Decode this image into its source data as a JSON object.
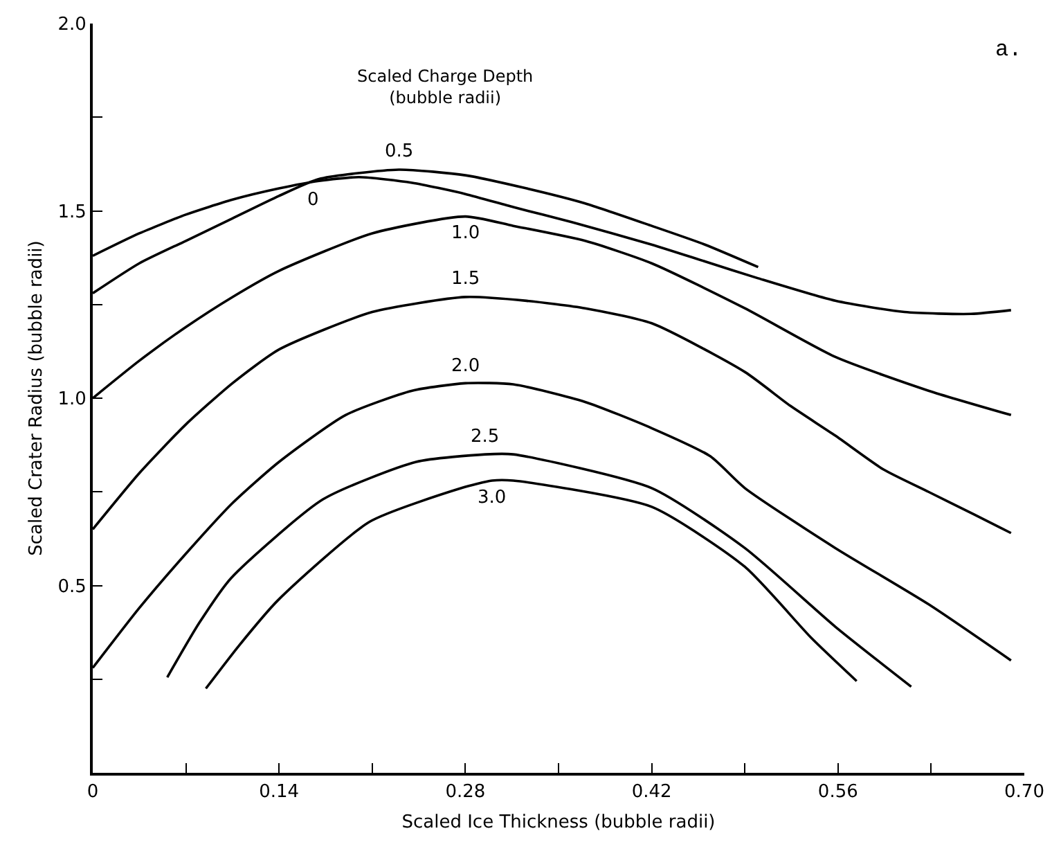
{
  "chart_data": {
    "type": "line",
    "xlabel": "Scaled Ice Thickness (bubble radii)",
    "ylabel": "Scaled Crater Radius (bubble radii)",
    "legend_title": "Scaled Charge Depth\n(bubble radii)",
    "annotations": [
      "a."
    ],
    "xlim": [
      0,
      0.7
    ],
    "ylim": [
      0,
      2.0
    ],
    "xticks": [
      0,
      {
        "value": 0.07,
        "label": null
      },
      0.14,
      {
        "value": 0.21,
        "label": null
      },
      0.28,
      {
        "value": 0.35,
        "label": null
      },
      0.42,
      {
        "value": 0.49,
        "label": null
      },
      0.56,
      {
        "value": 0.63,
        "label": null
      },
      {
        "value": 0.7,
        "label": "0.70"
      }
    ],
    "yticks": [
      {
        "value": 0.25,
        "label": null
      },
      0.5,
      {
        "value": 0.75,
        "label": null
      },
      {
        "value": 1,
        "label": "1.0"
      },
      {
        "value": 1.25,
        "label": null
      },
      1.5,
      {
        "value": 1.75,
        "label": null
      },
      {
        "value": 2,
        "label": "2.0"
      }
    ],
    "grid": false,
    "legend": false,
    "marker": "none",
    "line_style": "solid",
    "series": [
      {
        "name": "0",
        "color": "#000000",
        "x": [
          0,
          0.035,
          0.07,
          0.105,
          0.14,
          0.17,
          0.2,
          0.24,
          0.28,
          0.316,
          0.36,
          0.42,
          0.46,
          0.5,
          0.558,
          0.61,
          0.66,
          0.69
        ],
        "values": [
          1.38,
          1.44,
          1.49,
          1.53,
          1.56,
          1.58,
          1.59,
          1.575,
          1.545,
          1.51,
          1.47,
          1.41,
          1.365,
          1.32,
          1.26,
          1.23,
          1.225,
          1.235
        ]
      },
      {
        "name": "0.5",
        "color": "#000000",
        "x": [
          0,
          0.035,
          0.07,
          0.105,
          0.14,
          0.17,
          0.23,
          0.28,
          0.326,
          0.37,
          0.42,
          0.46,
          0.5
        ],
        "values": [
          1.28,
          1.36,
          1.42,
          1.48,
          1.54,
          1.585,
          1.61,
          1.595,
          1.56,
          1.52,
          1.46,
          1.41,
          1.35
        ]
      },
      {
        "name": "1.0",
        "color": "#000000",
        "x": [
          0,
          0.035,
          0.07,
          0.105,
          0.14,
          0.21,
          0.28,
          0.316,
          0.37,
          0.42,
          0.49,
          0.558,
          0.628,
          0.69
        ],
        "values": [
          1.0,
          1.1,
          1.19,
          1.27,
          1.34,
          1.44,
          1.485,
          1.46,
          1.42,
          1.36,
          1.24,
          1.11,
          1.02,
          0.955
        ]
      },
      {
        "name": "1.5",
        "color": "#000000",
        "x": [
          0,
          0.035,
          0.07,
          0.105,
          0.14,
          0.21,
          0.28,
          0.326,
          0.37,
          0.42,
          0.49,
          0.524,
          0.558,
          0.594,
          0.628,
          0.662,
          0.69
        ],
        "values": [
          0.65,
          0.8,
          0.93,
          1.04,
          1.13,
          1.23,
          1.27,
          1.26,
          1.24,
          1.2,
          1.07,
          0.98,
          0.9,
          0.81,
          0.75,
          0.69,
          0.64
        ]
      },
      {
        "name": "2.0",
        "color": "#000000",
        "x": [
          0,
          0.035,
          0.07,
          0.105,
          0.14,
          0.19,
          0.24,
          0.28,
          0.316,
          0.37,
          0.42,
          0.464,
          0.49,
          0.558,
          0.628,
          0.69
        ],
        "values": [
          0.28,
          0.44,
          0.585,
          0.72,
          0.83,
          0.955,
          1.02,
          1.04,
          1.037,
          0.99,
          0.92,
          0.845,
          0.76,
          0.6,
          0.45,
          0.3
        ]
      },
      {
        "name": "2.5",
        "color": "#000000",
        "x": [
          0.056,
          0.08,
          0.104,
          0.173,
          0.243,
          0.295,
          0.316,
          0.42,
          0.49,
          0.558,
          0.615
        ],
        "values": [
          0.255,
          0.4,
          0.52,
          0.73,
          0.83,
          0.85,
          0.85,
          0.76,
          0.6,
          0.39,
          0.23
        ]
      },
      {
        "name": "3.0",
        "color": "#000000",
        "x": [
          0.085,
          0.11,
          0.139,
          0.208,
          0.277,
          0.3,
          0.316,
          0.42,
          0.49,
          0.54,
          0.574
        ],
        "values": [
          0.225,
          0.34,
          0.46,
          0.67,
          0.76,
          0.78,
          0.78,
          0.71,
          0.55,
          0.36,
          0.245
        ]
      }
    ]
  }
}
